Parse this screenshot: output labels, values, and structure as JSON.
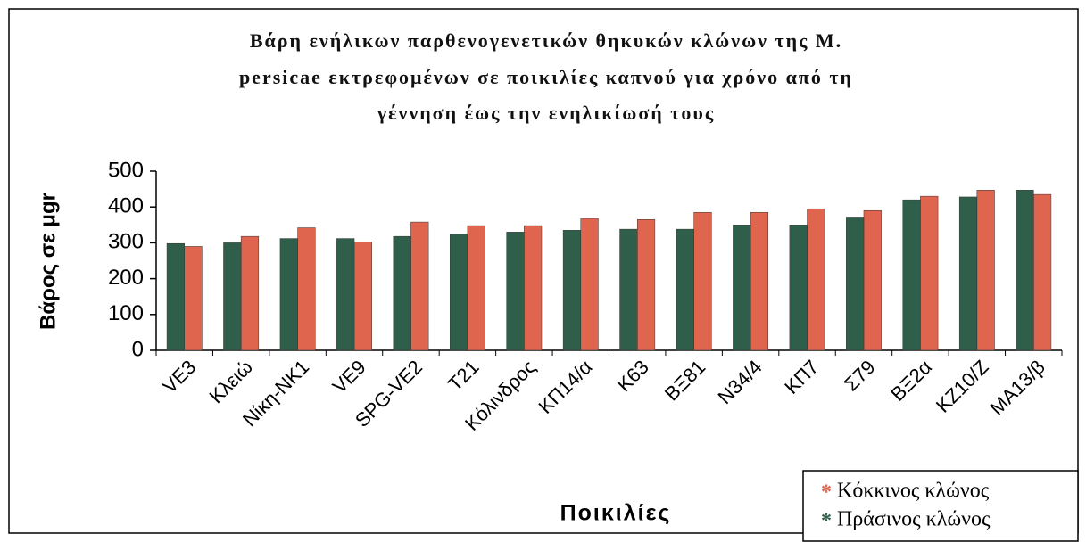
{
  "chart_data": {
    "type": "bar",
    "title": [
      "Βάρη ενήλικων παρθενογενετικών θηκυκών κλώνων της Μ.",
      "persicae εκτρεφομένων σε ποικιλίες καπνού για χρόνο από τη",
      "γέννηση έως την ενηλικίωσή τους"
    ],
    "x_label": "Ποικιλίες",
    "y_label": "Βάρος σε μgr",
    "categories": [
      "VE3",
      "Κλειώ",
      "Νίκη-ΝΚ1",
      "VE9",
      "SPG-VE2",
      "T21",
      "Κόλινδρος",
      "ΚΠ14/α",
      "Κ63",
      "ΒΞ81",
      "Ν34/4",
      "ΚΠ7",
      "Σ79",
      "ΒΞ2α",
      "ΚΖ10/Ζ",
      "ΜΑ13/β"
    ],
    "series": [
      {
        "name": "Κόκκινος κλώνος",
        "color": "#e0654e",
        "values": [
          290,
          318,
          342,
          302,
          358,
          348,
          348,
          368,
          365,
          385,
          385,
          395,
          390,
          430,
          447,
          435
        ]
      },
      {
        "name": "Πράσινος κλώνος",
        "color": "#2f5f4b",
        "values": [
          298,
          300,
          312,
          312,
          318,
          325,
          330,
          335,
          338,
          338,
          350,
          350,
          372,
          420,
          428,
          447
        ]
      }
    ],
    "ylim": [
      0,
      500
    ],
    "yticks": [
      0,
      100,
      200,
      300,
      400,
      500
    ],
    "grid": false,
    "legend": "lower right"
  }
}
